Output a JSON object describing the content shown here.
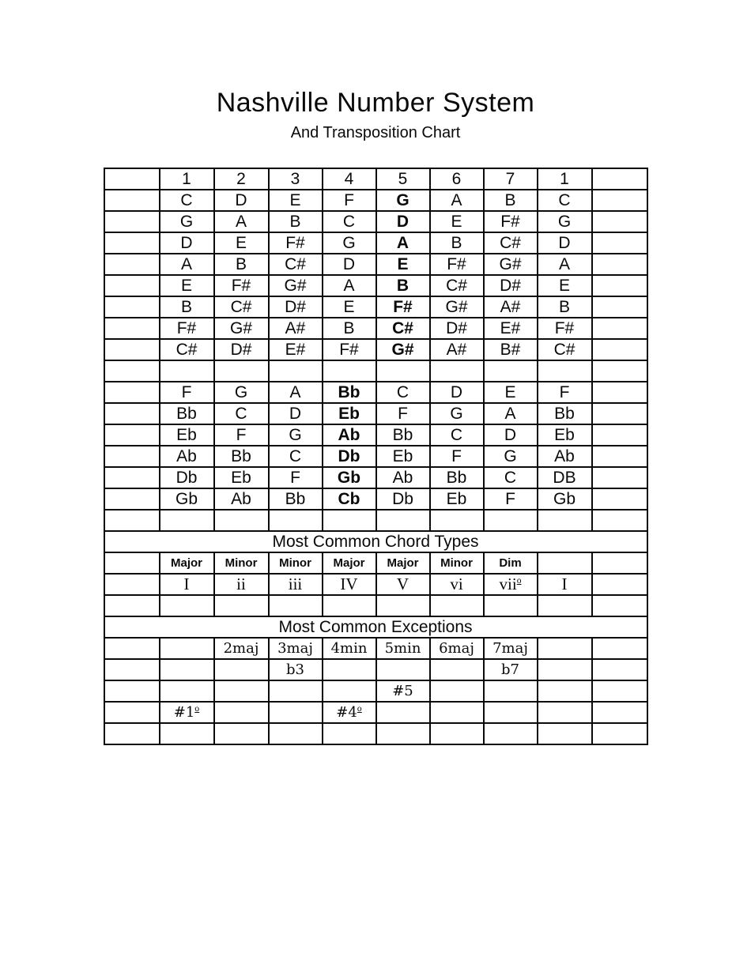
{
  "page": {
    "title": "Nashville Number System",
    "subtitle": "And Transposition Chart"
  },
  "table": {
    "header_numbers": [
      "",
      "1",
      "2",
      "3",
      "4",
      "5",
      "6",
      "7",
      "1",
      ""
    ],
    "sharp_keys": {
      "bold_column": 5,
      "rows": [
        [
          "C",
          "D",
          "E",
          "F",
          "G",
          "A",
          "B",
          "C"
        ],
        [
          "G",
          "A",
          "B",
          "C",
          "D",
          "E",
          "F#",
          "G"
        ],
        [
          "D",
          "E",
          "F#",
          "G",
          "A",
          "B",
          "C#",
          "D"
        ],
        [
          "A",
          "B",
          "C#",
          "D",
          "E",
          "F#",
          "G#",
          "A"
        ],
        [
          "E",
          "F#",
          "G#",
          "A",
          "B",
          "C#",
          "D#",
          "E"
        ],
        [
          "B",
          "C#",
          "D#",
          "E",
          "F#",
          "G#",
          "A#",
          "B"
        ],
        [
          "F#",
          "G#",
          "A#",
          "B",
          "C#",
          "D#",
          "E#",
          "F#"
        ],
        [
          "C#",
          "D#",
          "E#",
          "F#",
          "G#",
          "A#",
          "B#",
          "C#"
        ]
      ]
    },
    "flat_keys": {
      "bold_column": 4,
      "rows": [
        [
          "F",
          "G",
          "A",
          "Bb",
          "C",
          "D",
          "E",
          "F"
        ],
        [
          "Bb",
          "C",
          "D",
          "Eb",
          "F",
          "G",
          "A",
          "Bb"
        ],
        [
          "Eb",
          "F",
          "G",
          "Ab",
          "Bb",
          "C",
          "D",
          "Eb"
        ],
        [
          "Ab",
          "Bb",
          "C",
          "Db",
          "Eb",
          "F",
          "G",
          "Ab"
        ],
        [
          "Db",
          "Eb",
          "F",
          "Gb",
          "Ab",
          "Bb",
          "C",
          "DB"
        ],
        [
          "Gb",
          "Ab",
          "Bb",
          "Cb",
          "Db",
          "Eb",
          "F",
          "Gb"
        ]
      ]
    },
    "chord_types": {
      "heading": "Most Common Chord Types",
      "qualities": [
        "Major",
        "Minor",
        "Minor",
        "Major",
        "Major",
        "Minor",
        "Dim",
        ""
      ],
      "numerals": [
        "I",
        "ii",
        "iii",
        "IV",
        "V",
        "vi",
        "viiº",
        "I"
      ]
    },
    "exceptions": {
      "heading": "Most Common Exceptions",
      "rows": [
        [
          "",
          "2maj",
          "3maj",
          "4min",
          "5min",
          "6maj",
          "7maj",
          ""
        ],
        [
          "",
          "",
          "b3",
          "",
          "",
          "",
          "b7",
          ""
        ],
        [
          "",
          "",
          "",
          "",
          "#5",
          "",
          "",
          ""
        ],
        [
          "#1º",
          "",
          "",
          "#4º",
          "",
          "",
          "",
          ""
        ]
      ]
    }
  }
}
